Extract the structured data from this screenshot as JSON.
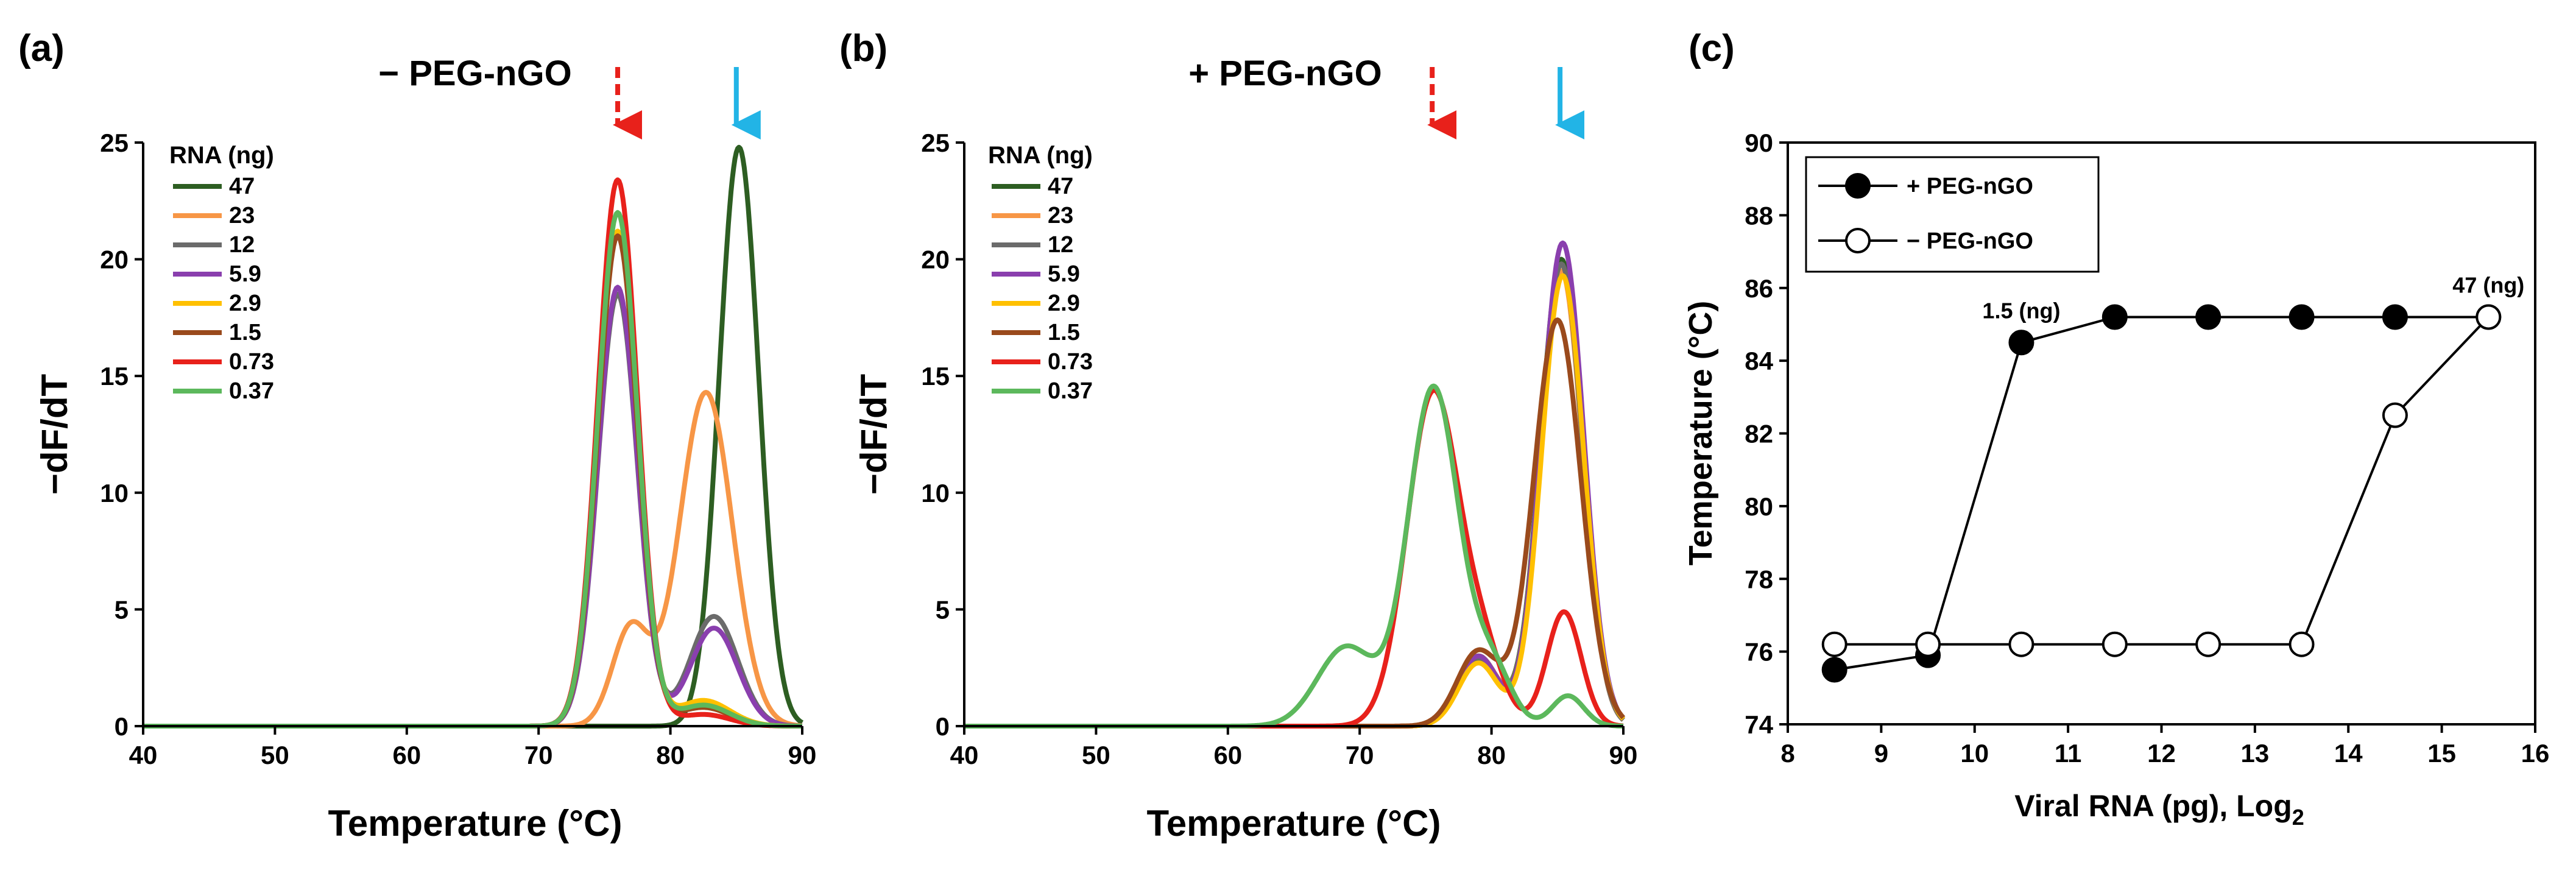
{
  "chart_data": [
    {
      "type": "line",
      "panel_label": "(a)",
      "title": "− PEG-nGO",
      "xlabel": "Temperature (°C)",
      "ylabel": "−dF/dT",
      "xlim": [
        40,
        90
      ],
      "ylim": [
        0,
        25
      ],
      "x_ticks": [
        40,
        50,
        60,
        70,
        80,
        90
      ],
      "y_ticks": [
        0,
        5,
        10,
        15,
        20,
        25
      ],
      "grid": false,
      "legend_title": "RNA (ng)",
      "legend_position": "top-left",
      "arrows": [
        {
          "x": 76,
          "style": "dashed",
          "color": "#e8211b"
        },
        {
          "x": 85,
          "style": "solid",
          "color": "#22b4e6"
        }
      ],
      "series": [
        {
          "name": "47",
          "color": "#2d5e22",
          "peaks": [
            {
              "center": 85.2,
              "height": 24.8,
              "sigma": 1.5
            }
          ]
        },
        {
          "name": "23",
          "color": "#f79646",
          "peaks": [
            {
              "center": 77.0,
              "height": 4.2,
              "sigma": 1.4
            },
            {
              "center": 82.7,
              "height": 14.3,
              "sigma": 2.0
            }
          ]
        },
        {
          "name": "12",
          "color": "#6b6b6b",
          "peaks": [
            {
              "center": 76.0,
              "height": 18.5,
              "sigma": 1.5
            },
            {
              "center": 83.3,
              "height": 4.7,
              "sigma": 1.8
            }
          ]
        },
        {
          "name": "5.9",
          "color": "#8a3fae",
          "peaks": [
            {
              "center": 76.0,
              "height": 18.8,
              "sigma": 1.5
            },
            {
              "center": 83.3,
              "height": 4.2,
              "sigma": 1.8
            }
          ]
        },
        {
          "name": "2.9",
          "color": "#ffc000",
          "peaks": [
            {
              "center": 76.0,
              "height": 21.2,
              "sigma": 1.5
            },
            {
              "center": 82.5,
              "height": 1.1,
              "sigma": 2.0
            }
          ]
        },
        {
          "name": "1.5",
          "color": "#9a4a1c",
          "peaks": [
            {
              "center": 76.0,
              "height": 21.0,
              "sigma": 1.5
            },
            {
              "center": 82.5,
              "height": 0.8,
              "sigma": 2.0
            }
          ]
        },
        {
          "name": "0.73",
          "color": "#e8211b",
          "peaks": [
            {
              "center": 76.0,
              "height": 23.4,
              "sigma": 1.5
            },
            {
              "center": 82.5,
              "height": 0.5,
              "sigma": 2.0
            }
          ]
        },
        {
          "name": "0.37",
          "color": "#5cb85c",
          "peaks": [
            {
              "center": 76.0,
              "height": 22.0,
              "sigma": 1.5
            },
            {
              "center": 82.5,
              "height": 0.9,
              "sigma": 2.0
            }
          ]
        }
      ]
    },
    {
      "type": "line",
      "panel_label": "(b)",
      "title": "+ PEG-nGO",
      "xlabel": "Temperature (°C)",
      "ylabel": "−dF/dT",
      "xlim": [
        40,
        90
      ],
      "ylim": [
        0,
        25
      ],
      "x_ticks": [
        40,
        50,
        60,
        70,
        80,
        90
      ],
      "y_ticks": [
        0,
        5,
        10,
        15,
        20,
        25
      ],
      "grid": false,
      "legend_title": "RNA (ng)",
      "legend_position": "top-left",
      "arrows": [
        {
          "x": 75.5,
          "style": "dashed",
          "color": "#e8211b"
        },
        {
          "x": 85.2,
          "style": "solid",
          "color": "#22b4e6"
        }
      ],
      "series": [
        {
          "name": "47",
          "color": "#2d5e22",
          "peaks": [
            {
              "center": 79.0,
              "height": 3.0,
              "sigma": 1.5
            },
            {
              "center": 85.3,
              "height": 20.0,
              "sigma": 1.6
            }
          ]
        },
        {
          "name": "23",
          "color": "#f79646",
          "peaks": [
            {
              "center": 79.0,
              "height": 3.0,
              "sigma": 1.5
            },
            {
              "center": 85.3,
              "height": 19.5,
              "sigma": 1.6
            }
          ]
        },
        {
          "name": "12",
          "color": "#6b6b6b",
          "peaks": [
            {
              "center": 79.0,
              "height": 2.8,
              "sigma": 1.5
            },
            {
              "center": 85.3,
              "height": 19.8,
              "sigma": 1.6
            }
          ]
        },
        {
          "name": "5.9",
          "color": "#8a3fae",
          "peaks": [
            {
              "center": 79.0,
              "height": 3.0,
              "sigma": 1.5
            },
            {
              "center": 85.4,
              "height": 20.7,
              "sigma": 1.6
            }
          ]
        },
        {
          "name": "2.9",
          "color": "#ffc000",
          "peaks": [
            {
              "center": 79.0,
              "height": 2.7,
              "sigma": 1.5
            },
            {
              "center": 85.4,
              "height": 19.3,
              "sigma": 1.6
            }
          ]
        },
        {
          "name": "1.5",
          "color": "#9a4a1c",
          "peaks": [
            {
              "center": 79.0,
              "height": 3.2,
              "sigma": 1.6
            },
            {
              "center": 85.0,
              "height": 17.4,
              "sigma": 1.8
            }
          ]
        },
        {
          "name": "0.73",
          "color": "#e8211b",
          "peaks": [
            {
              "center": 75.6,
              "height": 14.3,
              "sigma": 2.0
            },
            {
              "center": 79.5,
              "height": 2.6,
              "sigma": 1.5
            },
            {
              "center": 85.5,
              "height": 4.9,
              "sigma": 1.3
            }
          ]
        },
        {
          "name": "0.37",
          "color": "#5cb85c",
          "peaks": [
            {
              "center": 69.0,
              "height": 3.4,
              "sigma": 2.2
            },
            {
              "center": 75.6,
              "height": 14.5,
              "sigma": 1.9
            },
            {
              "center": 80.0,
              "height": 2.5,
              "sigma": 1.5
            },
            {
              "center": 85.8,
              "height": 1.3,
              "sigma": 1.2
            }
          ]
        }
      ]
    },
    {
      "type": "line",
      "panel_label": "(c)",
      "title": "",
      "xlabel": "Viral RNA (pg), Log",
      "xlabel_subscript": "2",
      "ylabel": "Temperature (°C)",
      "xlim": [
        8,
        16
      ],
      "ylim": [
        74,
        90
      ],
      "x_ticks": [
        8,
        9,
        10,
        11,
        12,
        13,
        14,
        15,
        16
      ],
      "y_ticks": [
        74,
        76,
        78,
        80,
        82,
        84,
        86,
        88,
        90
      ],
      "grid": false,
      "legend_position": "top-left",
      "annotations": [
        {
          "text": "1.5 (ng)",
          "x": 10.5,
          "y": 84.5
        },
        {
          "text": "47 (ng)",
          "x": 15.5,
          "y": 85.2
        }
      ],
      "series": [
        {
          "name": "+ PEG-nGO",
          "marker": "filled-circle",
          "x": [
            8.5,
            9.5,
            10.5,
            11.5,
            12.5,
            13.5,
            14.5,
            15.5
          ],
          "y": [
            75.5,
            75.9,
            84.5,
            85.2,
            85.2,
            85.2,
            85.2,
            85.2
          ]
        },
        {
          "name": "− PEG-nGO",
          "marker": "open-circle",
          "x": [
            8.5,
            9.5,
            10.5,
            11.5,
            12.5,
            13.5,
            14.5,
            15.5
          ],
          "y": [
            76.2,
            76.2,
            76.2,
            76.2,
            76.2,
            76.2,
            82.5,
            85.2
          ]
        }
      ]
    }
  ]
}
